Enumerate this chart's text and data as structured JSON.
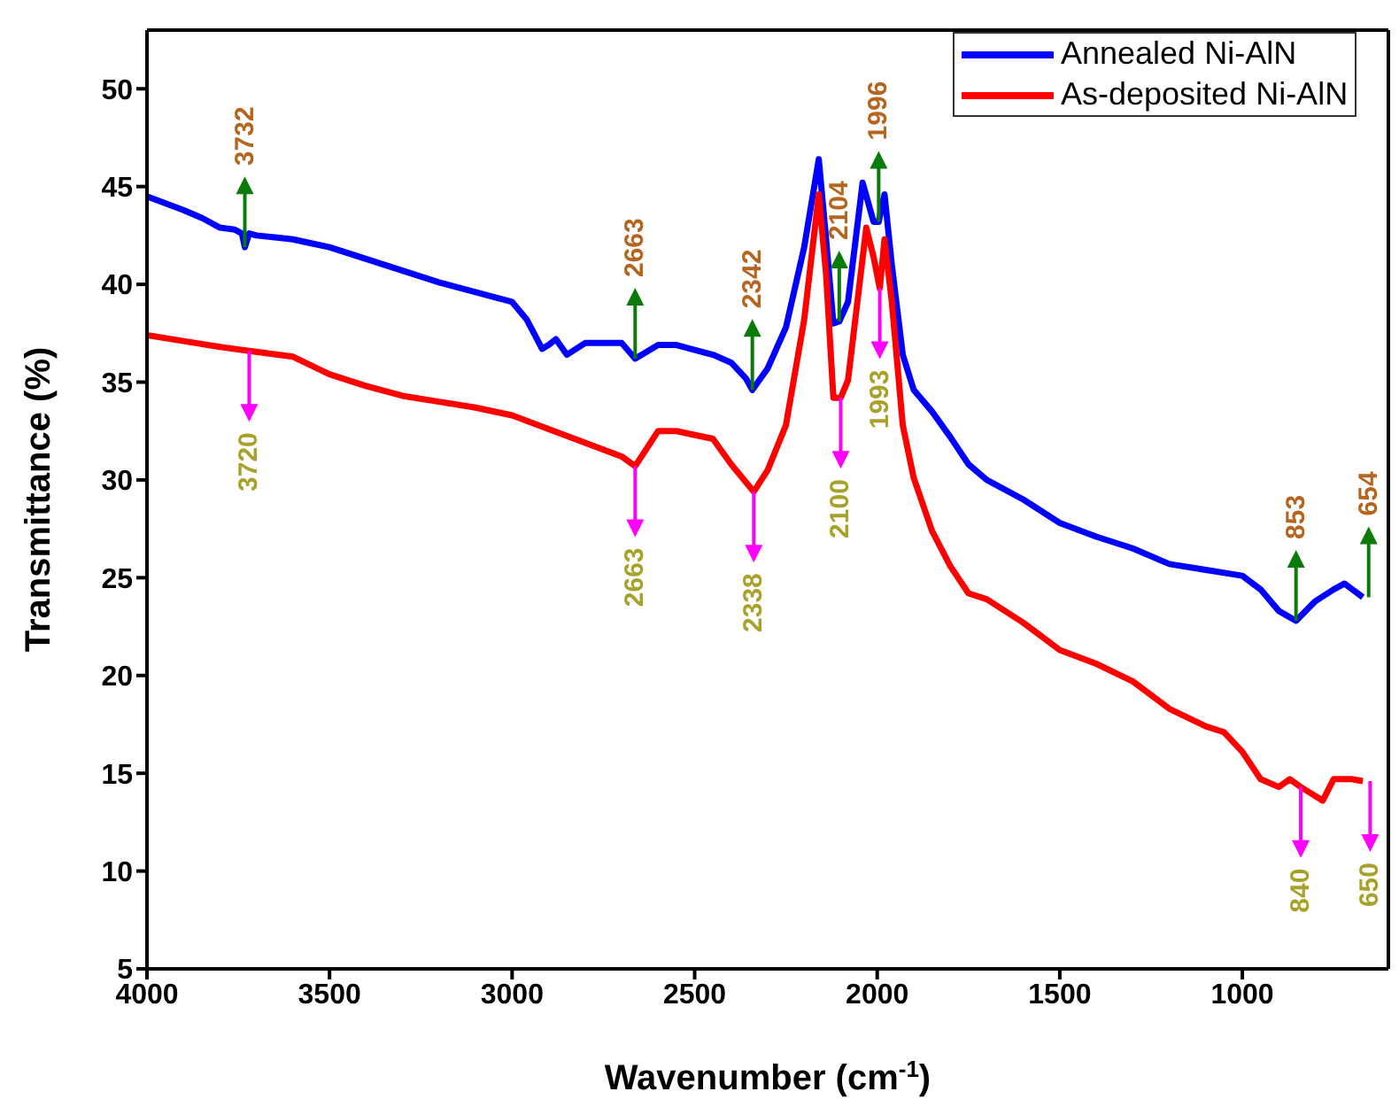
{
  "chart_data": {
    "type": "line",
    "xlabel": "Wavenumber (cm$^{-1}$)",
    "ylabel": "Transmittance (%)",
    "xlim": [
      4000,
      600
    ],
    "ylim": [
      5,
      53
    ],
    "xticks": [
      4000,
      3500,
      3000,
      2500,
      2000,
      1500,
      1000
    ],
    "yticks": [
      5,
      10,
      15,
      20,
      25,
      30,
      35,
      40,
      45,
      50
    ],
    "legend": "top right",
    "line_style": "solid",
    "marker": "none",
    "series": [
      {
        "name": "Annealed Ni-AlN",
        "color": "#0000ff",
        "x": [
          4000,
          3900,
          3850,
          3800,
          3760,
          3740,
          3732,
          3720,
          3700,
          3650,
          3600,
          3550,
          3500,
          3400,
          3300,
          3200,
          3100,
          3000,
          2960,
          2940,
          2918,
          2900,
          2880,
          2850,
          2800,
          2700,
          2663,
          2600,
          2550,
          2450,
          2400,
          2360,
          2342,
          2300,
          2250,
          2200,
          2160,
          2140,
          2120,
          2104,
          2080,
          2040,
          2010,
          1996,
          1980,
          1960,
          1930,
          1900,
          1850,
          1800,
          1750,
          1700,
          1600,
          1500,
          1400,
          1300,
          1200,
          1100,
          1000,
          950,
          900,
          853,
          800,
          750,
          720,
          670
        ],
        "values": [
          44.5,
          43.8,
          43.4,
          42.9,
          42.8,
          42.6,
          41.9,
          42.6,
          42.5,
          42.4,
          42.3,
          42.1,
          41.9,
          41.3,
          40.7,
          40.1,
          39.6,
          39.1,
          38.2,
          37.5,
          36.7,
          36.9,
          37.2,
          36.4,
          37.0,
          37.0,
          36.2,
          36.9,
          36.9,
          36.4,
          36.0,
          35.2,
          34.6,
          35.7,
          37.8,
          41.9,
          46.4,
          42.3,
          38.0,
          38.1,
          39.1,
          45.2,
          43.2,
          43.2,
          44.6,
          41.0,
          36.4,
          34.6,
          33.5,
          32.2,
          30.8,
          30.0,
          29.0,
          27.8,
          27.1,
          26.5,
          25.7,
          25.4,
          25.1,
          24.4,
          23.3,
          22.8,
          23.8,
          24.4,
          24.7,
          24.0
        ]
      },
      {
        "name": "As-deposited Ni-AlN",
        "color": "#ff0000",
        "x": [
          4000,
          3900,
          3800,
          3720,
          3600,
          3500,
          3400,
          3300,
          3200,
          3100,
          3000,
          2900,
          2800,
          2700,
          2663,
          2600,
          2550,
          2450,
          2400,
          2338,
          2300,
          2250,
          2200,
          2160,
          2140,
          2120,
          2100,
          2080,
          2030,
          2010,
          1993,
          1980,
          1960,
          1930,
          1900,
          1850,
          1800,
          1750,
          1700,
          1600,
          1500,
          1400,
          1300,
          1200,
          1100,
          1050,
          1000,
          950,
          900,
          870,
          840,
          780,
          750,
          700,
          670
        ],
        "values": [
          37.4,
          37.1,
          36.8,
          36.6,
          36.3,
          35.4,
          34.8,
          34.3,
          34.0,
          33.7,
          33.3,
          32.6,
          31.9,
          31.2,
          30.7,
          32.5,
          32.5,
          32.1,
          30.8,
          29.4,
          30.5,
          32.8,
          38.2,
          44.6,
          40.5,
          34.2,
          34.2,
          35.1,
          42.9,
          41.4,
          39.8,
          42.3,
          39.1,
          32.8,
          30.1,
          27.4,
          25.6,
          24.2,
          23.9,
          22.7,
          21.3,
          20.6,
          19.7,
          18.3,
          17.4,
          17.1,
          16.1,
          14.7,
          14.3,
          14.7,
          14.3,
          13.6,
          14.7,
          14.7,
          14.6
        ]
      }
    ],
    "annotations": [
      {
        "text": "3732",
        "x": 3732,
        "y": 41.9
      },
      {
        "text": "2663",
        "x": 2663,
        "y": 36.2
      },
      {
        "text": "2342",
        "x": 2342,
        "y": 34.6
      },
      {
        "text": "2104",
        "x": 2104,
        "y": 38.1
      },
      {
        "text": "1996",
        "x": 1996,
        "y": 43.2
      },
      {
        "text": "853",
        "x": 853,
        "y": 22.8
      },
      {
        "text": "654",
        "x": 654,
        "y": 24.0
      },
      {
        "text": "3720",
        "x": 3720,
        "y": 36.6
      },
      {
        "text": "2663",
        "x": 2663,
        "y": 30.7
      },
      {
        "text": "2338",
        "x": 2338,
        "y": 29.4
      },
      {
        "text": "2100",
        "x": 2100,
        "y": 34.2
      },
      {
        "text": "1993",
        "x": 1993,
        "y": 39.8
      },
      {
        "text": "840",
        "x": 840,
        "y": 14.3
      },
      {
        "text": "650",
        "x": 650,
        "y": 14.6
      }
    ]
  }
}
